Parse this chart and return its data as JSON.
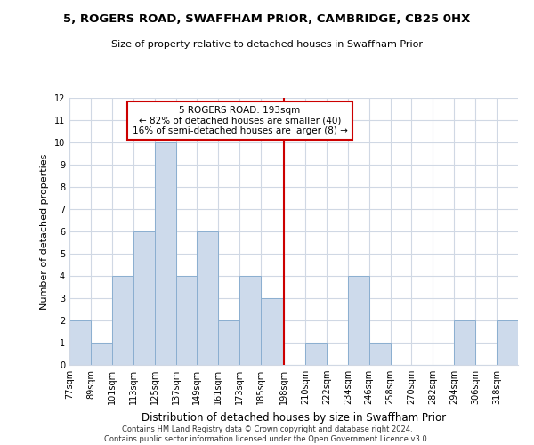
{
  "title": "5, ROGERS ROAD, SWAFFHAM PRIOR, CAMBRIDGE, CB25 0HX",
  "subtitle": "Size of property relative to detached houses in Swaffham Prior",
  "xlabel": "Distribution of detached houses by size in Swaffham Prior",
  "ylabel": "Number of detached properties",
  "bin_labels": [
    "77sqm",
    "89sqm",
    "101sqm",
    "113sqm",
    "125sqm",
    "137sqm",
    "149sqm",
    "161sqm",
    "173sqm",
    "185sqm",
    "198sqm",
    "210sqm",
    "222sqm",
    "234sqm",
    "246sqm",
    "258sqm",
    "270sqm",
    "282sqm",
    "294sqm",
    "306sqm",
    "318sqm"
  ],
  "bar_heights": [
    2,
    1,
    4,
    6,
    10,
    4,
    6,
    2,
    4,
    3,
    0,
    1,
    0,
    4,
    1,
    0,
    0,
    0,
    2,
    0,
    2
  ],
  "bar_color": "#cddaeb",
  "bar_edgecolor": "#8aaed0",
  "reference_line_x": 198,
  "annotation_title": "5 ROGERS ROAD: 193sqm",
  "annotation_line1": "← 82% of detached houses are smaller (40)",
  "annotation_line2": "16% of semi-detached houses are larger (8) →",
  "annotation_box_color": "#ffffff",
  "annotation_box_edgecolor": "#cc0000",
  "ref_line_color": "#cc0000",
  "ylim": [
    0,
    12
  ],
  "yticks": [
    0,
    1,
    2,
    3,
    4,
    5,
    6,
    7,
    8,
    9,
    10,
    11,
    12
  ],
  "bg_color": "#ffffff",
  "grid_color": "#d0d8e4",
  "footer_line1": "Contains HM Land Registry data © Crown copyright and database right 2024.",
  "footer_line2": "Contains public sector information licensed under the Open Government Licence v3.0.",
  "bin_edges": [
    77,
    89,
    101,
    113,
    125,
    137,
    149,
    161,
    173,
    185,
    198,
    210,
    222,
    234,
    246,
    258,
    270,
    282,
    294,
    306,
    318,
    330
  ]
}
